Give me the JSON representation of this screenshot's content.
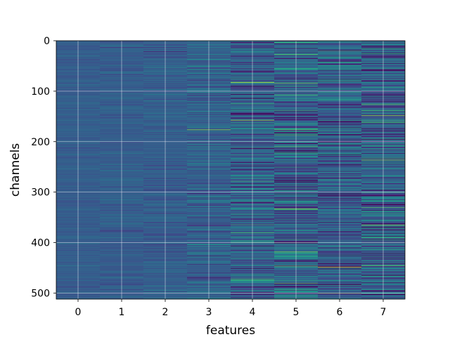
{
  "chart_data": {
    "type": "heatmap",
    "xlabel": "features",
    "ylabel": "channels",
    "x_ticks": [
      "0",
      "1",
      "2",
      "3",
      "4",
      "5",
      "6",
      "7"
    ],
    "y_ticks": [
      "0",
      "100",
      "200",
      "300",
      "400",
      "500"
    ],
    "y_tick_values": [
      0,
      100,
      200,
      300,
      400,
      500
    ],
    "n_rows": 512,
    "n_cols": 8,
    "ylim": [
      512,
      0
    ],
    "xlim": [
      -0.5,
      7.5
    ],
    "colormap": "viridis",
    "grid": true,
    "column_profiles": [
      {
        "feature": 0,
        "mean": 0.3,
        "spread": 0.03
      },
      {
        "feature": 1,
        "mean": 0.3,
        "spread": 0.04
      },
      {
        "feature": 2,
        "mean": 0.3,
        "spread": 0.05
      },
      {
        "feature": 3,
        "mean": 0.31,
        "spread": 0.08
      },
      {
        "feature": 4,
        "mean": 0.31,
        "spread": 0.13
      },
      {
        "feature": 5,
        "mean": 0.3,
        "spread": 0.16
      },
      {
        "feature": 6,
        "mean": 0.3,
        "spread": 0.14
      },
      {
        "feature": 7,
        "mean": 0.31,
        "spread": 0.16
      }
    ],
    "highlights": [
      {
        "feature": 3,
        "channel": 50,
        "value": 0.55
      },
      {
        "feature": 3,
        "channel": 176,
        "value": 0.85
      },
      {
        "feature": 4,
        "channel": 82,
        "value": 0.95
      },
      {
        "feature": 4,
        "channel": 157,
        "value": 0.85
      },
      {
        "feature": 4,
        "channel": 380,
        "value": 0.7
      },
      {
        "feature": 4,
        "channel": 474,
        "value": 0.7
      },
      {
        "feature": 5,
        "channel": 176,
        "value": 0.75
      },
      {
        "feature": 5,
        "channel": 250,
        "value": 0.6
      },
      {
        "feature": 5,
        "channel": 333,
        "value": 0.85
      },
      {
        "feature": 5,
        "channel": 418,
        "value": 0.8
      },
      {
        "feature": 6,
        "channel": 30,
        "value": 0.55
      },
      {
        "feature": 6,
        "channel": 80,
        "value": 0.65
      },
      {
        "feature": 6,
        "channel": 117,
        "value": 0.6
      },
      {
        "feature": 6,
        "channel": 448,
        "value": 0.95
      },
      {
        "feature": 7,
        "channel": 148,
        "value": 0.85
      },
      {
        "feature": 7,
        "channel": 236,
        "value": 0.8
      },
      {
        "feature": 7,
        "channel": 365,
        "value": 0.8
      }
    ],
    "lowlights": [
      {
        "feature": 4,
        "channel": 255,
        "value": 0.02
      },
      {
        "feature": 5,
        "channel": 140,
        "value": 0.0
      },
      {
        "feature": 5,
        "channel": 280,
        "value": 0.02
      },
      {
        "feature": 5,
        "channel": 500,
        "value": 0.02
      },
      {
        "feature": 6,
        "channel": 165,
        "value": 0.02
      },
      {
        "feature": 6,
        "channel": 225,
        "value": 0.0
      },
      {
        "feature": 7,
        "channel": 10,
        "value": 0.02
      },
      {
        "feature": 7,
        "channel": 120,
        "value": 0.02
      },
      {
        "feature": 7,
        "channel": 422,
        "value": 0.0
      }
    ]
  }
}
